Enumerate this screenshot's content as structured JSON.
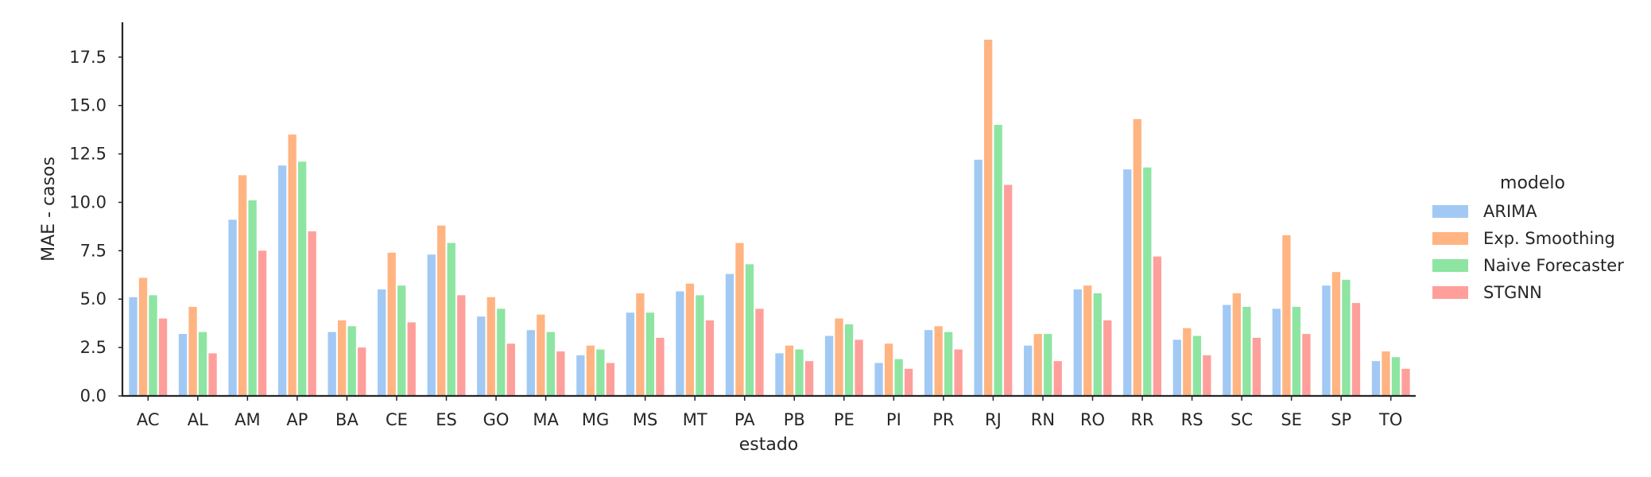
{
  "chart_data": {
    "type": "bar",
    "title": "",
    "xlabel": "estado",
    "ylabel": "MAE - casos",
    "ylim": [
      0,
      19.3
    ],
    "yticks": [
      "0.0",
      "2.5",
      "5.0",
      "7.5",
      "10.0",
      "12.5",
      "15.0",
      "17.5"
    ],
    "grid": false,
    "legend": {
      "title": "modelo",
      "placement": "right"
    },
    "categories": [
      "AC",
      "AL",
      "AM",
      "AP",
      "BA",
      "CE",
      "ES",
      "GO",
      "MA",
      "MG",
      "MS",
      "MT",
      "PA",
      "PB",
      "PE",
      "PI",
      "PR",
      "RJ",
      "RN",
      "RO",
      "RR",
      "RS",
      "SC",
      "SE",
      "SP",
      "TO"
    ],
    "series": [
      {
        "name": "ARIMA",
        "color": "#a1c9f4",
        "values": [
          5.1,
          3.2,
          9.1,
          11.9,
          3.3,
          5.5,
          7.3,
          4.1,
          3.4,
          2.1,
          4.3,
          5.4,
          6.3,
          2.2,
          3.1,
          1.7,
          3.4,
          12.2,
          2.6,
          5.5,
          11.7,
          2.9,
          4.7,
          4.5,
          5.7,
          1.8
        ]
      },
      {
        "name": "Exp. Smoothing",
        "color": "#ffb482",
        "values": [
          6.1,
          4.6,
          11.4,
          13.5,
          3.9,
          7.4,
          8.8,
          5.1,
          4.2,
          2.6,
          5.3,
          5.8,
          7.9,
          2.6,
          4.0,
          2.7,
          3.6,
          18.4,
          3.2,
          5.7,
          14.3,
          3.5,
          5.3,
          8.3,
          6.4,
          2.3
        ]
      },
      {
        "name": "Naive Forecaster",
        "color": "#8de5a1",
        "values": [
          5.2,
          3.3,
          10.1,
          12.1,
          3.6,
          5.7,
          7.9,
          4.5,
          3.3,
          2.4,
          4.3,
          5.2,
          6.8,
          2.4,
          3.7,
          1.9,
          3.3,
          14.0,
          3.2,
          5.3,
          11.8,
          3.1,
          4.6,
          4.6,
          6.0,
          2.0
        ]
      },
      {
        "name": "STGNN",
        "color": "#ff9f9b",
        "values": [
          4.0,
          2.2,
          7.5,
          8.5,
          2.5,
          3.8,
          5.2,
          2.7,
          2.3,
          1.7,
          3.0,
          3.9,
          4.5,
          1.8,
          2.9,
          1.4,
          2.4,
          10.9,
          1.8,
          3.9,
          7.2,
          2.1,
          3.0,
          3.2,
          4.8,
          1.4
        ]
      }
    ]
  }
}
